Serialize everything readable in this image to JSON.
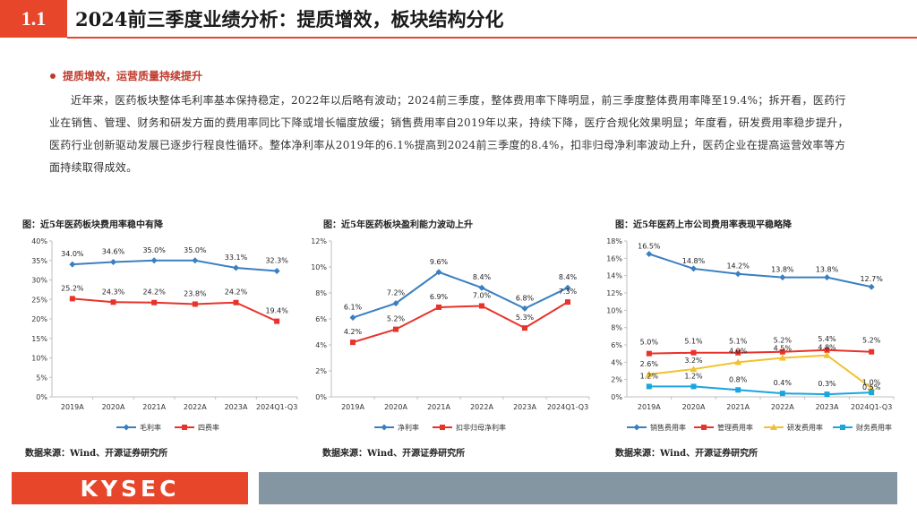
{
  "header": {
    "number": "1.1",
    "title": "2024前三季度业绩分析：提质增效，板块结构分化"
  },
  "bullet": {
    "text": "提质增效，运营质量持续提升"
  },
  "paragraph": "近年来，医药板块整体毛利率基本保持稳定，2022年以后略有波动；2024前三季度，整体费用率下降明显，前三季度整体费用率降至19.4%；拆开看，医药行业在销售、管理、财务和研发方面的费用率同比下降或增长幅度放缓；销售费用率自2019年以来，持续下降，医疗合规化效果明显；年度看，研发费用率稳步提升，医药行业创新驱动发展已逐步行程良性循环。整体净利率从2019年的6.1%提高到2024前三季度的8.4%，扣非归母净利率波动上升，医药企业在提高运营效率等方面持续取得成效。",
  "footer": {
    "logo": "KYSEC"
  },
  "colors": {
    "accent": "#e8462a",
    "blue": "#3a7fc1",
    "red": "#e8322a",
    "yellow": "#f2c12e",
    "cyan": "#19a6de",
    "footer_bar": "#8496a2"
  },
  "chart_data": [
    {
      "type": "line",
      "title": "图：近5年医药板块费用率稳中有降",
      "source": "数据来源：Wind、开源证券研究所",
      "categories": [
        "2019A",
        "2020A",
        "2021A",
        "2022A",
        "2023A",
        "2024Q1-Q3"
      ],
      "ylim": [
        0,
        40
      ],
      "yticks": [
        "0%",
        "5%",
        "10%",
        "15%",
        "20%",
        "25%",
        "30%",
        "35%",
        "40%"
      ],
      "series": [
        {
          "name": "毛利率",
          "color": "#3a7fc1",
          "marker": "diamond",
          "values": [
            34.0,
            34.6,
            35.0,
            35.0,
            33.1,
            32.3
          ],
          "labels": [
            "34.0%",
            "34.6%",
            "35.0%",
            "35.0%",
            "33.1%",
            "32.3%"
          ]
        },
        {
          "name": "四费率",
          "color": "#e8322a",
          "marker": "square",
          "values": [
            25.2,
            24.3,
            24.2,
            23.8,
            24.2,
            19.4
          ],
          "labels": [
            "25.2%",
            "24.3%",
            "24.2%",
            "23.8%",
            "24.2%",
            "19.4%"
          ]
        }
      ]
    },
    {
      "type": "line",
      "title": "图：近5年医药板块盈利能力波动上升",
      "source": "数据来源：Wind、开源证券研究所",
      "categories": [
        "2019A",
        "2020A",
        "2021A",
        "2022A",
        "2023A",
        "2024Q1-Q3"
      ],
      "ylim": [
        0,
        12
      ],
      "yticks": [
        "0%",
        "2%",
        "4%",
        "6%",
        "8%",
        "10%",
        "12%"
      ],
      "series": [
        {
          "name": "净利率",
          "color": "#3a7fc1",
          "marker": "diamond",
          "values": [
            6.1,
            7.2,
            9.6,
            8.4,
            6.8,
            8.4
          ],
          "labels": [
            "6.1%",
            "7.2%",
            "9.6%",
            "8.4%",
            "6.8%",
            "8.4%"
          ]
        },
        {
          "name": "扣非归母净利率",
          "color": "#e8322a",
          "marker": "square",
          "values": [
            4.2,
            5.2,
            6.9,
            7.0,
            5.3,
            7.3
          ],
          "labels": [
            "4.2%",
            "5.2%",
            "6.9%",
            "7.0%",
            "5.3%",
            "7.3%"
          ]
        }
      ]
    },
    {
      "type": "line",
      "title": "图：近5年医药上市公司费用率表现平稳略降",
      "source": "数据来源：Wind、开源证券研究所",
      "categories": [
        "2019A",
        "2020A",
        "2021A",
        "2022A",
        "2023A",
        "2024Q1-Q3"
      ],
      "ylim": [
        0,
        18
      ],
      "yticks": [
        "0%",
        "2%",
        "4%",
        "6%",
        "8%",
        "10%",
        "12%",
        "14%",
        "16%",
        "18%"
      ],
      "series": [
        {
          "name": "销售费用率",
          "color": "#3a7fc1",
          "marker": "diamond",
          "values": [
            16.5,
            14.8,
            14.2,
            13.8,
            13.8,
            12.7
          ],
          "labels": [
            "16.5%",
            "14.8%",
            "14.2%",
            "13.8%",
            "13.8%",
            "12.7%"
          ]
        },
        {
          "name": "管理费用率",
          "color": "#e8322a",
          "marker": "square",
          "values": [
            5.0,
            5.1,
            5.1,
            5.2,
            5.4,
            5.2
          ],
          "labels": [
            "5.0%",
            "5.1%",
            "5.1%",
            "5.2%",
            "5.4%",
            "5.2%"
          ]
        },
        {
          "name": "研发费用率",
          "color": "#f2c12e",
          "marker": "triangle",
          "values": [
            2.6,
            3.2,
            4.0,
            4.5,
            4.8,
            1.0
          ],
          "labels": [
            "2.6%",
            "3.2%",
            "4.0%",
            "4.5%",
            "4.8%",
            "1.0%"
          ]
        },
        {
          "name": "财务费用率",
          "color": "#19a6de",
          "marker": "square",
          "values": [
            1.2,
            1.2,
            0.8,
            0.4,
            0.3,
            0.5
          ],
          "labels": [
            "1.2%",
            "1.2%",
            "0.8%",
            "0.4%",
            "0.3%",
            "0.5%"
          ]
        }
      ]
    }
  ]
}
